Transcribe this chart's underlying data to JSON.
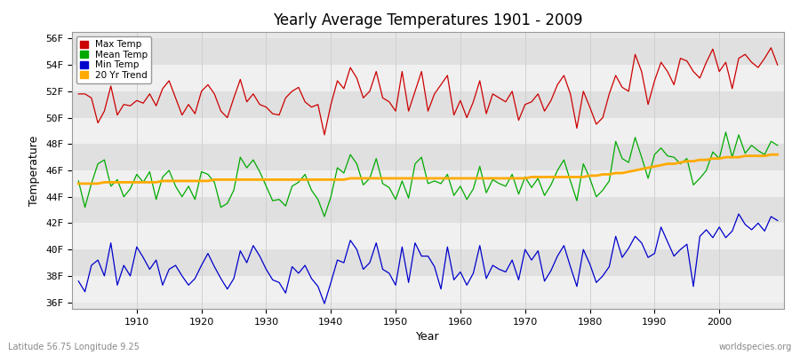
{
  "title": "Yearly Average Temperatures 1901 - 2009",
  "xlabel": "Year",
  "ylabel": "Temperature",
  "footnote_left": "Latitude 56.75 Longitude 9.25",
  "footnote_right": "worldspecies.org",
  "years_start": 1901,
  "years_end": 2009,
  "yticks": [
    36,
    38,
    40,
    42,
    44,
    46,
    48,
    50,
    52,
    54,
    56
  ],
  "ylim": [
    35.5,
    56.5
  ],
  "xlim": [
    1900,
    2010
  ],
  "colors": {
    "max": "#cc0000",
    "mean": "#00aa00",
    "min": "#0000cc",
    "trend": "#ffaa00",
    "fig_bg": "#ffffff",
    "plot_bg": "#e8e8e8",
    "band_light": "#f0f0f0",
    "band_dark": "#e0e0e0",
    "grid": "#cccccc"
  },
  "legend": [
    "Max Temp",
    "Mean Temp",
    "Min Temp",
    "20 Yr Trend"
  ],
  "max_temp": [
    51.8,
    51.8,
    51.5,
    49.6,
    50.5,
    52.4,
    50.2,
    51.0,
    50.9,
    51.3,
    51.1,
    51.8,
    50.9,
    52.2,
    52.8,
    51.5,
    50.2,
    51.0,
    50.3,
    52.0,
    52.5,
    51.8,
    50.5,
    50.0,
    51.5,
    52.9,
    51.2,
    51.8,
    51.0,
    50.8,
    50.3,
    50.2,
    51.5,
    52.0,
    52.3,
    51.2,
    50.8,
    51.0,
    48.7,
    51.0,
    52.8,
    52.2,
    53.8,
    53.0,
    51.5,
    52.0,
    53.5,
    51.5,
    51.2,
    50.5,
    53.5,
    50.5,
    52.0,
    53.5,
    50.5,
    51.8,
    52.5,
    53.2,
    50.2,
    51.3,
    50.0,
    51.2,
    52.8,
    50.3,
    51.8,
    51.5,
    51.2,
    52.0,
    49.8,
    51.0,
    51.2,
    51.8,
    50.5,
    51.3,
    52.5,
    53.2,
    51.8,
    49.2,
    52.0,
    50.8,
    49.5,
    50.0,
    51.8,
    53.2,
    52.3,
    52.0,
    54.8,
    53.5,
    51.0,
    52.8,
    54.2,
    53.5,
    52.5,
    54.5,
    54.3,
    53.5,
    53.0,
    54.2,
    55.2,
    53.5,
    54.2,
    52.2,
    54.5,
    54.8,
    54.2,
    53.8,
    54.5,
    55.3,
    54.0
  ],
  "mean_temp": [
    45.2,
    43.2,
    45.0,
    46.5,
    46.8,
    44.8,
    45.3,
    44.0,
    44.6,
    45.7,
    45.1,
    45.9,
    43.8,
    45.5,
    46.0,
    44.8,
    44.0,
    44.8,
    43.8,
    45.9,
    45.7,
    45.1,
    43.2,
    43.5,
    44.5,
    47.0,
    46.2,
    46.8,
    45.9,
    44.8,
    43.7,
    43.8,
    43.3,
    44.8,
    45.1,
    45.7,
    44.5,
    43.8,
    42.5,
    44.0,
    46.2,
    45.8,
    47.2,
    46.5,
    44.9,
    45.4,
    46.9,
    45.0,
    44.7,
    43.8,
    45.2,
    43.9,
    46.5,
    47.0,
    45.0,
    45.2,
    45.0,
    45.7,
    44.1,
    44.8,
    43.8,
    44.6,
    46.3,
    44.3,
    45.3,
    45.0,
    44.8,
    45.7,
    44.2,
    45.5,
    44.7,
    45.4,
    44.1,
    44.9,
    46.0,
    46.8,
    45.2,
    43.7,
    46.5,
    45.4,
    44.0,
    44.5,
    45.2,
    48.2,
    46.9,
    46.6,
    48.5,
    47.0,
    45.4,
    47.2,
    47.7,
    47.1,
    47.0,
    46.5,
    46.9,
    44.9,
    45.4,
    46.0,
    47.4,
    46.9,
    48.9,
    47.0,
    48.7,
    47.3,
    47.9,
    47.5,
    47.2,
    48.2,
    47.9
  ],
  "min_temp": [
    37.6,
    36.8,
    38.8,
    39.2,
    38.0,
    40.5,
    37.3,
    38.8,
    38.0,
    40.2,
    39.4,
    38.5,
    39.2,
    37.3,
    38.5,
    38.8,
    38.0,
    37.3,
    37.8,
    38.8,
    39.7,
    38.7,
    37.8,
    37.0,
    37.8,
    39.9,
    39.0,
    40.3,
    39.5,
    38.5,
    37.7,
    37.5,
    36.7,
    38.7,
    38.2,
    38.8,
    37.8,
    37.2,
    35.9,
    37.5,
    39.2,
    39.0,
    40.7,
    40.0,
    38.5,
    39.0,
    40.5,
    38.5,
    38.2,
    37.3,
    40.2,
    37.5,
    40.5,
    39.5,
    39.5,
    38.7,
    37.0,
    40.2,
    37.7,
    38.3,
    37.3,
    38.2,
    40.3,
    37.8,
    38.8,
    38.5,
    38.3,
    39.2,
    37.7,
    40.0,
    39.2,
    39.9,
    37.6,
    38.4,
    39.5,
    40.3,
    38.7,
    37.2,
    40.0,
    38.9,
    37.5,
    38.0,
    38.7,
    41.0,
    39.4,
    40.1,
    41.0,
    40.5,
    39.4,
    39.7,
    41.7,
    40.6,
    39.5,
    40.0,
    40.4,
    37.2,
    41.0,
    41.5,
    40.9,
    41.7,
    40.9,
    41.4,
    42.7,
    41.9,
    41.5,
    42.0,
    41.4,
    42.5,
    42.2
  ],
  "trend": [
    45.0,
    45.0,
    45.0,
    45.0,
    45.1,
    45.1,
    45.1,
    45.1,
    45.1,
    45.1,
    45.1,
    45.1,
    45.1,
    45.2,
    45.2,
    45.2,
    45.2,
    45.2,
    45.2,
    45.2,
    45.2,
    45.3,
    45.3,
    45.3,
    45.3,
    45.3,
    45.3,
    45.3,
    45.3,
    45.3,
    45.3,
    45.3,
    45.3,
    45.3,
    45.3,
    45.3,
    45.3,
    45.3,
    45.3,
    45.3,
    45.3,
    45.3,
    45.4,
    45.4,
    45.4,
    45.4,
    45.4,
    45.4,
    45.4,
    45.4,
    45.4,
    45.4,
    45.4,
    45.4,
    45.4,
    45.4,
    45.4,
    45.4,
    45.4,
    45.4,
    45.4,
    45.4,
    45.4,
    45.4,
    45.4,
    45.4,
    45.4,
    45.4,
    45.4,
    45.4,
    45.5,
    45.5,
    45.5,
    45.5,
    45.5,
    45.5,
    45.5,
    45.5,
    45.5,
    45.6,
    45.6,
    45.7,
    45.7,
    45.8,
    45.8,
    45.9,
    46.0,
    46.1,
    46.2,
    46.3,
    46.4,
    46.5,
    46.5,
    46.6,
    46.7,
    46.7,
    46.8,
    46.8,
    46.9,
    46.9,
    47.0,
    47.0,
    47.0,
    47.1,
    47.1,
    47.1,
    47.1,
    47.2,
    47.2
  ]
}
